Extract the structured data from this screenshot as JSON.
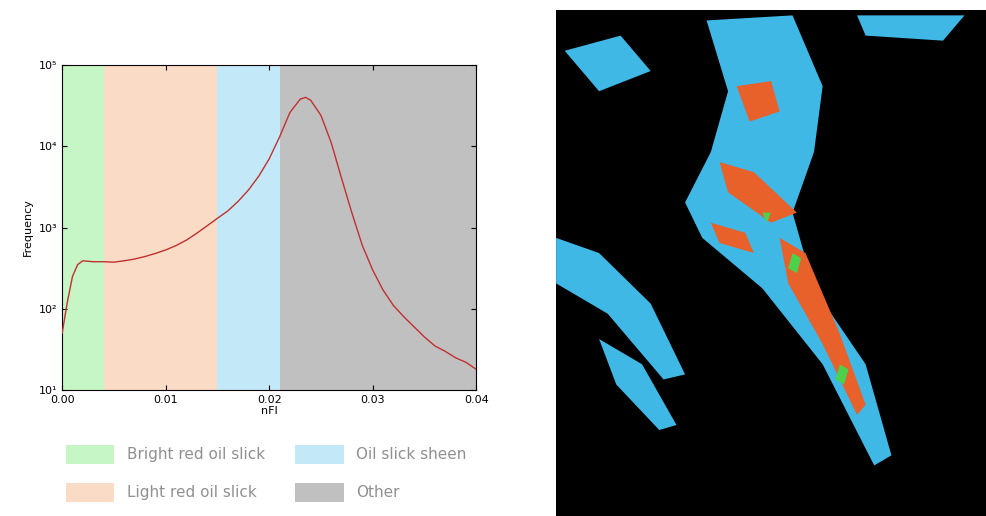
{
  "chart_data": {
    "type": "line",
    "x_label": "nFI",
    "y_label": "Frequency",
    "log": "y",
    "x": [
      0.0,
      0.0005,
      0.001,
      0.0015,
      0.002,
      0.003,
      0.004,
      0.005,
      0.006,
      0.007,
      0.008,
      0.009,
      0.01,
      0.011,
      0.012,
      0.013,
      0.014,
      0.015,
      0.016,
      0.017,
      0.018,
      0.019,
      0.02,
      0.021,
      0.022,
      0.023,
      0.0235,
      0.024,
      0.025,
      0.026,
      0.027,
      0.028,
      0.029,
      0.03,
      0.031,
      0.032,
      0.033,
      0.034,
      0.035,
      0.036,
      0.037,
      0.038,
      0.039,
      0.04
    ],
    "values": [
      50,
      120,
      250,
      350,
      390,
      380,
      380,
      375,
      390,
      410,
      440,
      480,
      530,
      600,
      700,
      850,
      1050,
      1300,
      1600,
      2100,
      2900,
      4300,
      7000,
      13000,
      26000,
      38000,
      40000,
      37000,
      24000,
      11000,
      4000,
      1500,
      600,
      300,
      170,
      110,
      80,
      60,
      45,
      35,
      30,
      25,
      22,
      18
    ],
    "color": "#c0302f",
    "xlim": [
      0,
      0.04
    ],
    "ylim": [
      10,
      100000
    ],
    "xticks": [
      {
        "value": 0,
        "label": "0.00"
      },
      0.01,
      0.02,
      0.03,
      0.04
    ],
    "yticks": [
      {
        "value": 10,
        "label": "10¹"
      },
      {
        "value": 100,
        "label": "10²"
      },
      {
        "value": 1000,
        "label": "10³"
      },
      {
        "value": 10000,
        "label": "10⁴"
      },
      {
        "value": 100000,
        "label": "10⁵"
      }
    ],
    "legend": "lower center",
    "bands": [
      {
        "name": "Bright red oil slick",
        "color": "#c6f5c6",
        "range": [
          0,
          0.004
        ]
      },
      {
        "name": "Light red oil slick",
        "color": "#fadbc6",
        "range": [
          0.004,
          0.015
        ]
      },
      {
        "name": "Oil slick sheen",
        "color": "#c3e9f8",
        "range": [
          0.015,
          0.021
        ]
      },
      {
        "name": "Other",
        "color": "#c0c0c0",
        "range": [
          0.021,
          0.04
        ]
      }
    ]
  }
}
